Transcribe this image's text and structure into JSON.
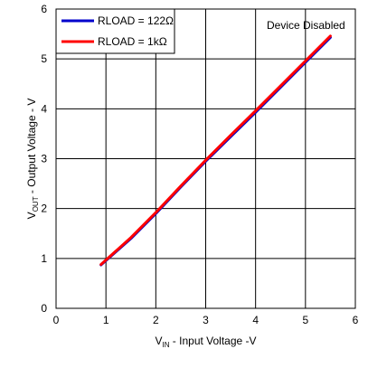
{
  "chart_data": {
    "type": "line",
    "title": "",
    "annotation": "Device Disabled",
    "x_axis": {
      "label_main": "V",
      "label_sub": "IN",
      "label_rest": " - Input Voltage -V",
      "range": [
        0,
        6
      ],
      "ticks": [
        0,
        1,
        2,
        3,
        4,
        5,
        6
      ]
    },
    "y_axis": {
      "label_main": "V",
      "label_sub": "OUT",
      "label_rest": " - Output Voltage - V",
      "range": [
        0,
        6
      ],
      "ticks": [
        0,
        1,
        2,
        3,
        4,
        5,
        6
      ]
    },
    "grid": true,
    "legend_position": "top-left",
    "series": [
      {
        "name": "RLOAD = 122Ω",
        "color": "#0000cc",
        "x": [
          0.9,
          1.5,
          2.0,
          2.5,
          3.0,
          3.5,
          4.0,
          4.5,
          5.0,
          5.5
        ],
        "y": [
          0.87,
          1.4,
          1.9,
          2.43,
          2.95,
          3.44,
          3.93,
          4.43,
          4.93,
          5.43
        ]
      },
      {
        "name": "RLOAD = 1kΩ",
        "color": "#ff0000",
        "x": [
          0.9,
          1.5,
          2.0,
          2.5,
          3.0,
          3.5,
          4.0,
          4.5,
          5.0,
          5.5
        ],
        "y": [
          0.88,
          1.42,
          1.92,
          2.45,
          2.97,
          3.47,
          3.96,
          4.46,
          4.96,
          5.46
        ]
      }
    ]
  }
}
